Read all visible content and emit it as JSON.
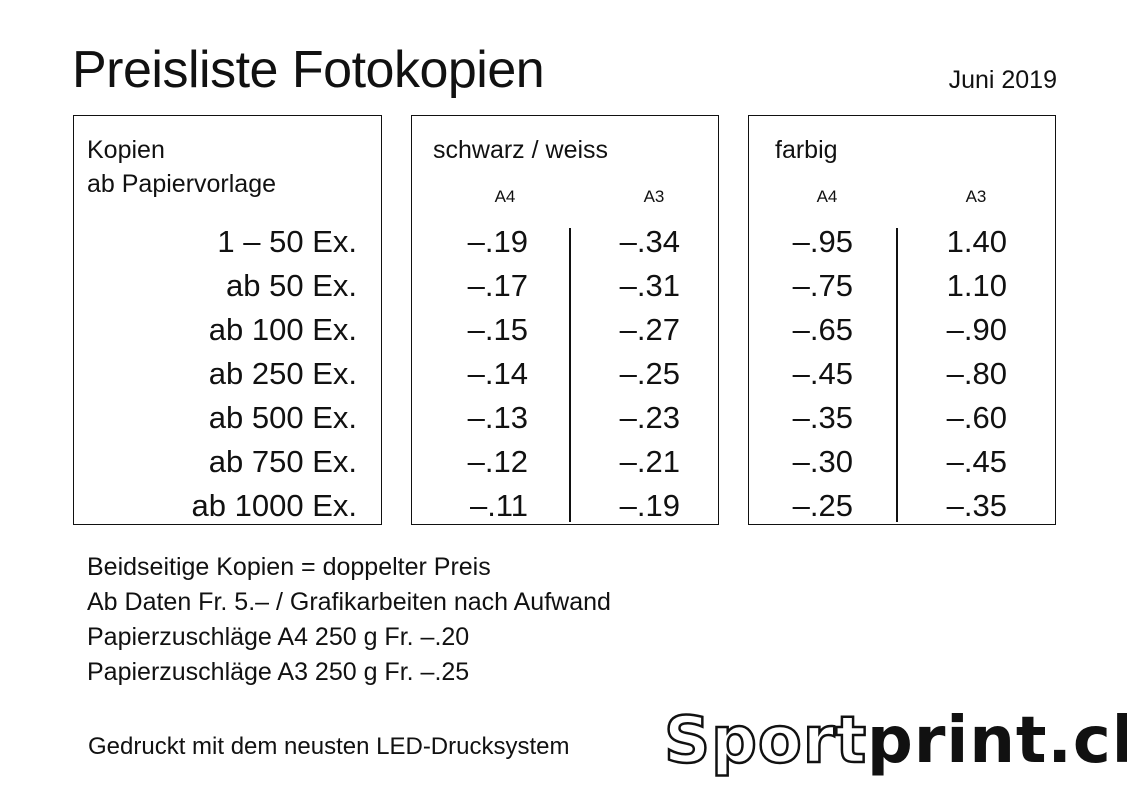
{
  "title": "Preisliste Fotokopien",
  "date": "Juni 2019",
  "kopien": {
    "heading_line1": "Kopien",
    "heading_line2": "ab Papiervorlage",
    "quantities": [
      "1 – 50 Ex.",
      "ab 50 Ex.",
      "ab 100 Ex.",
      "ab 250 Ex.",
      "ab 500 Ex.",
      "ab 750 Ex.",
      "ab 1000 Ex."
    ]
  },
  "schwarz_weiss": {
    "heading": "schwarz / weiss",
    "col_a4": "A4",
    "col_a3": "A3",
    "a4": [
      "–.19",
      "–.17",
      "–.15",
      "–.14",
      "–.13",
      "–.12",
      "–.11"
    ],
    "a3": [
      "–.34",
      "–.31",
      "–.27",
      "–.25",
      "–.23",
      "–.21",
      "–.19"
    ]
  },
  "farbig": {
    "heading": "farbig",
    "col_a4": "A4",
    "col_a3": "A3",
    "a4": [
      "–.95",
      "–.75",
      "–.65",
      "–.45",
      "–.35",
      "–.30",
      "–.25"
    ],
    "a3": [
      "1.40",
      "1.10",
      "–.90",
      "–.80",
      "–.60",
      "–.45",
      "–.35"
    ]
  },
  "notes": [
    "Beidseitige Kopien = doppelter Preis",
    "Ab Daten Fr. 5.– / Grafikarbeiten nach Aufwand",
    "Papierzuschläge A4 250 g Fr. –.20",
    "Papierzuschläge A3 250 g Fr. –.25"
  ],
  "footer": "Gedruckt mit dem neusten LED-Drucksystem",
  "logo": {
    "part1": "Sport",
    "part2": "print.ch"
  }
}
